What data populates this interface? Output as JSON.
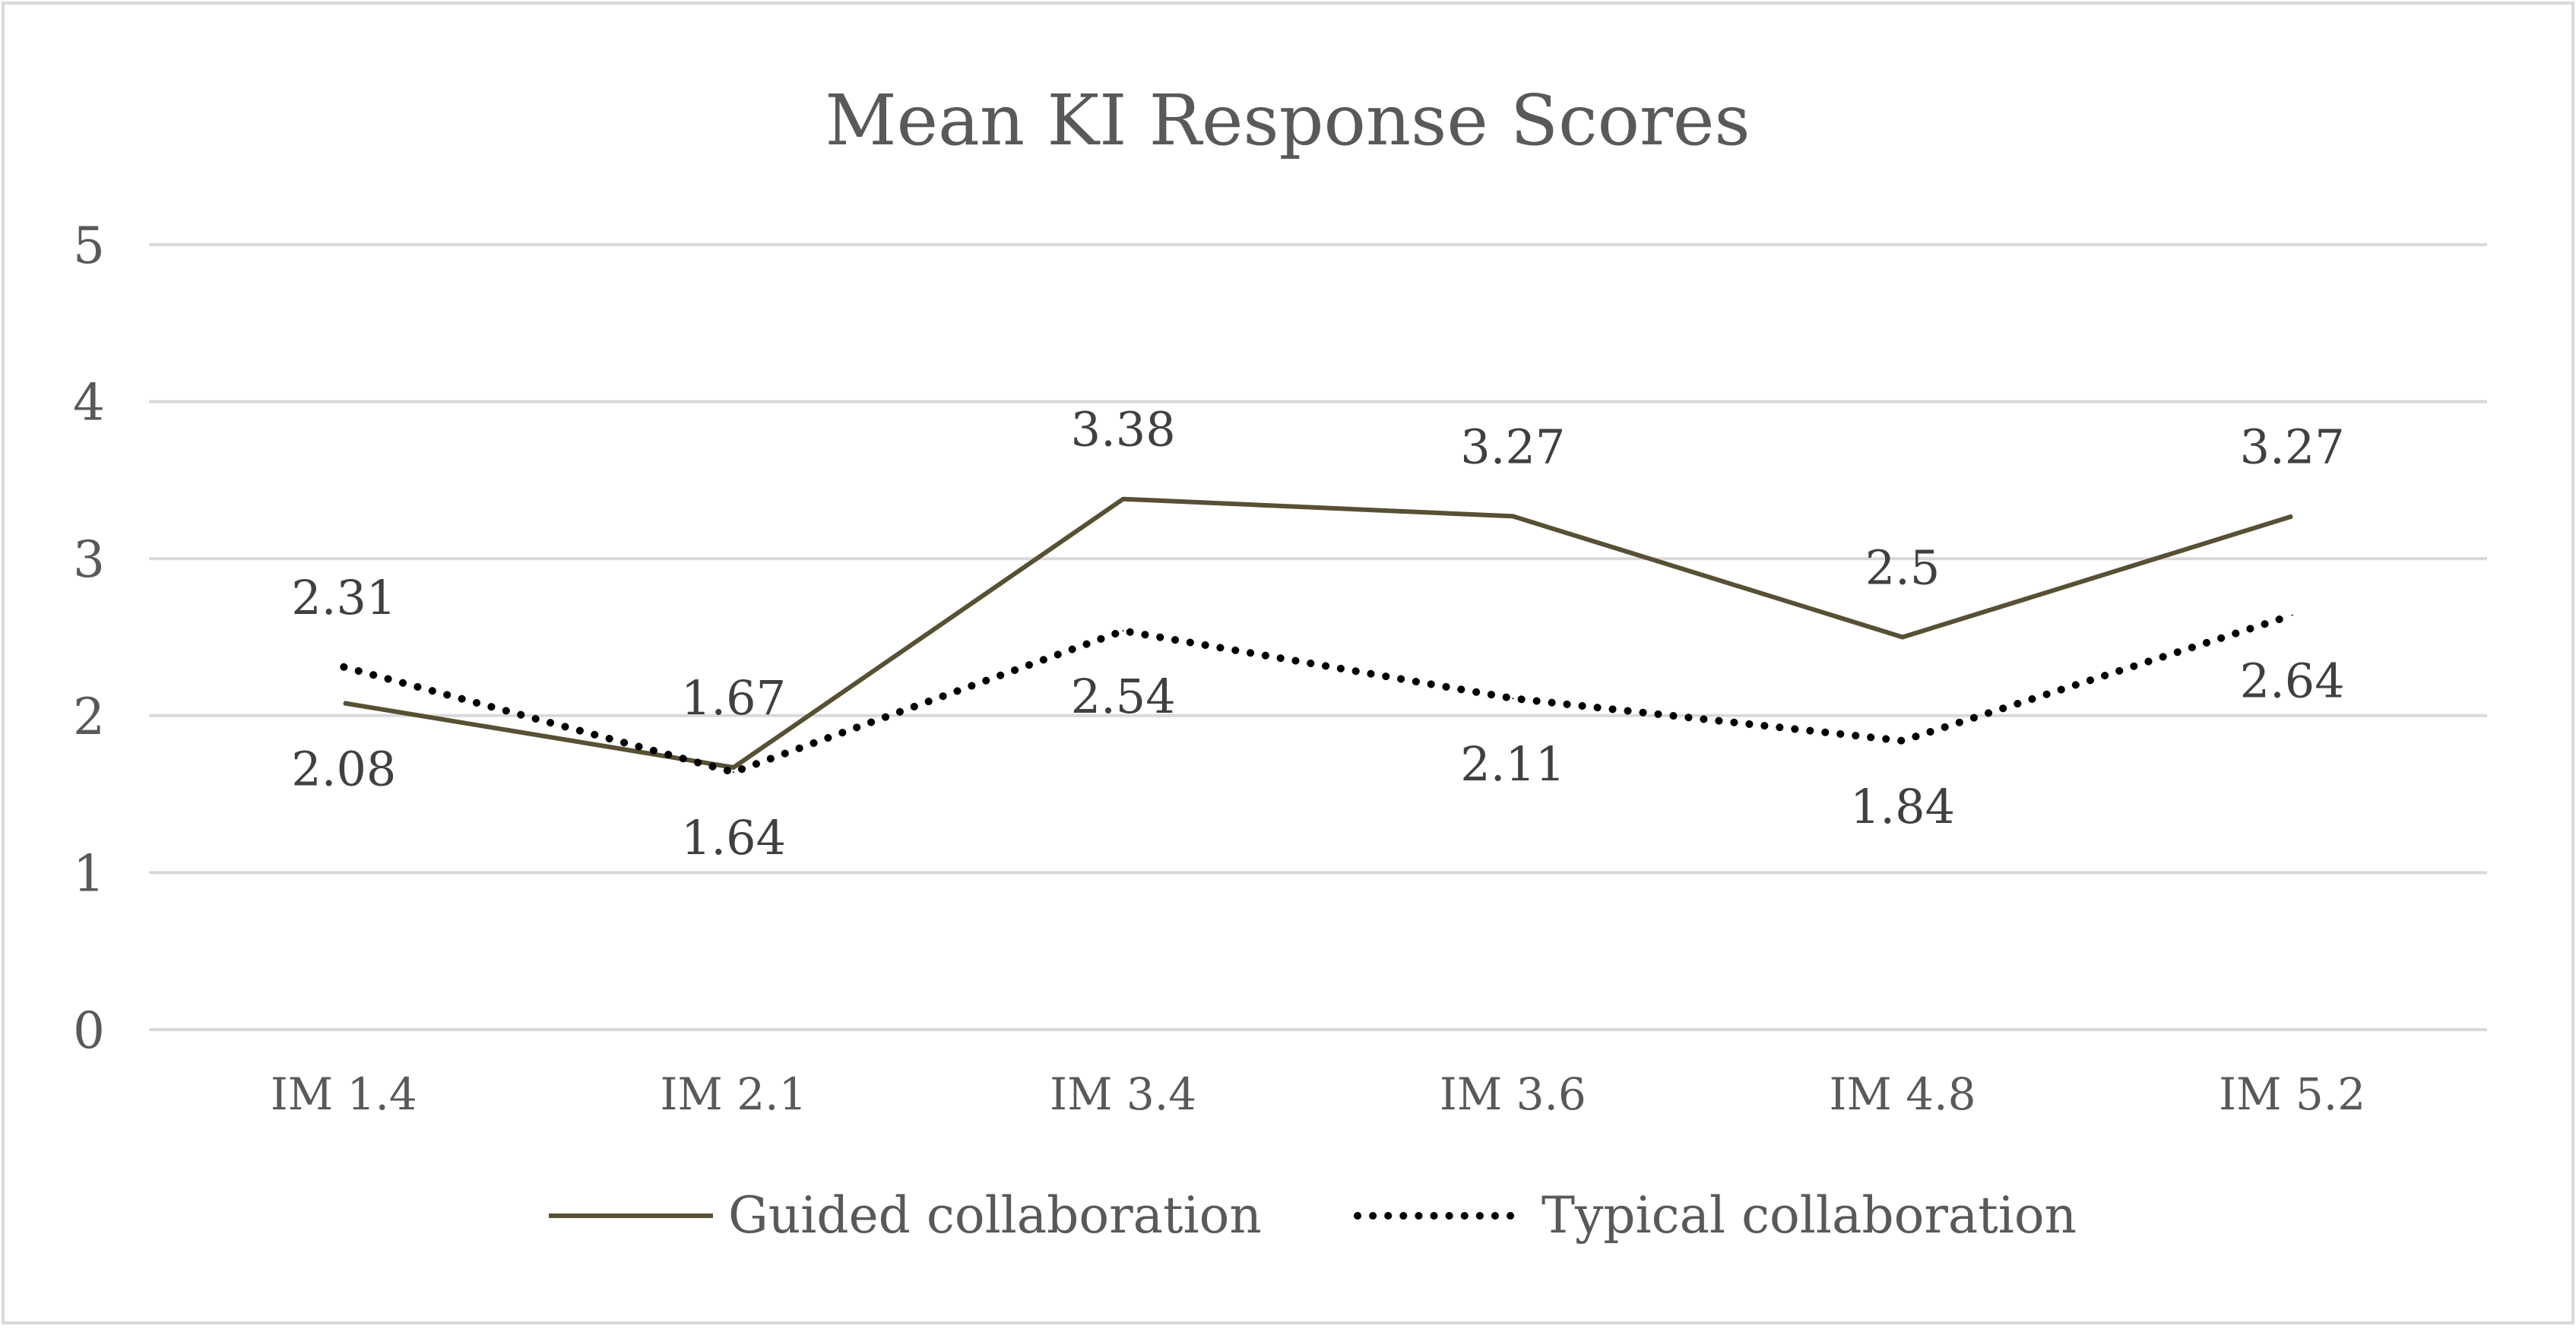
{
  "chart_data": {
    "type": "line",
    "title": "Mean KI Response Scores",
    "xlabel": "",
    "ylabel": "",
    "ylim": [
      0,
      5
    ],
    "yticks": [
      0,
      1,
      2,
      3,
      4,
      5
    ],
    "grid": true,
    "legend_position": "bottom",
    "categories": [
      "IM 1.4",
      "IM 2.1",
      "IM 3.4",
      "IM 3.6",
      "IM 4.8",
      "IM 5.2"
    ],
    "series": [
      {
        "name": "Guided collaboration",
        "values": [
          2.08,
          1.67,
          3.38,
          3.27,
          2.5,
          3.27
        ],
        "labels": [
          "2.08",
          "1.67",
          "3.38",
          "3.27",
          "2.5",
          "3.27"
        ],
        "label_side": [
          "below",
          "above",
          "above",
          "above",
          "above",
          "above"
        ],
        "style": "solid",
        "color": "#575033"
      },
      {
        "name": "Typical collaboration",
        "values": [
          2.31,
          1.64,
          2.54,
          2.11,
          1.84,
          2.64
        ],
        "labels": [
          "2.31",
          "1.64",
          "2.54",
          "2.11",
          "1.84",
          "2.64"
        ],
        "label_side": [
          "above",
          "below",
          "below",
          "below",
          "below",
          "below"
        ],
        "style": "dotted",
        "color": "#000000"
      }
    ],
    "colors": {
      "text": "#595959",
      "grid": "#d9d9d9",
      "border": "#d9d9d9"
    }
  }
}
